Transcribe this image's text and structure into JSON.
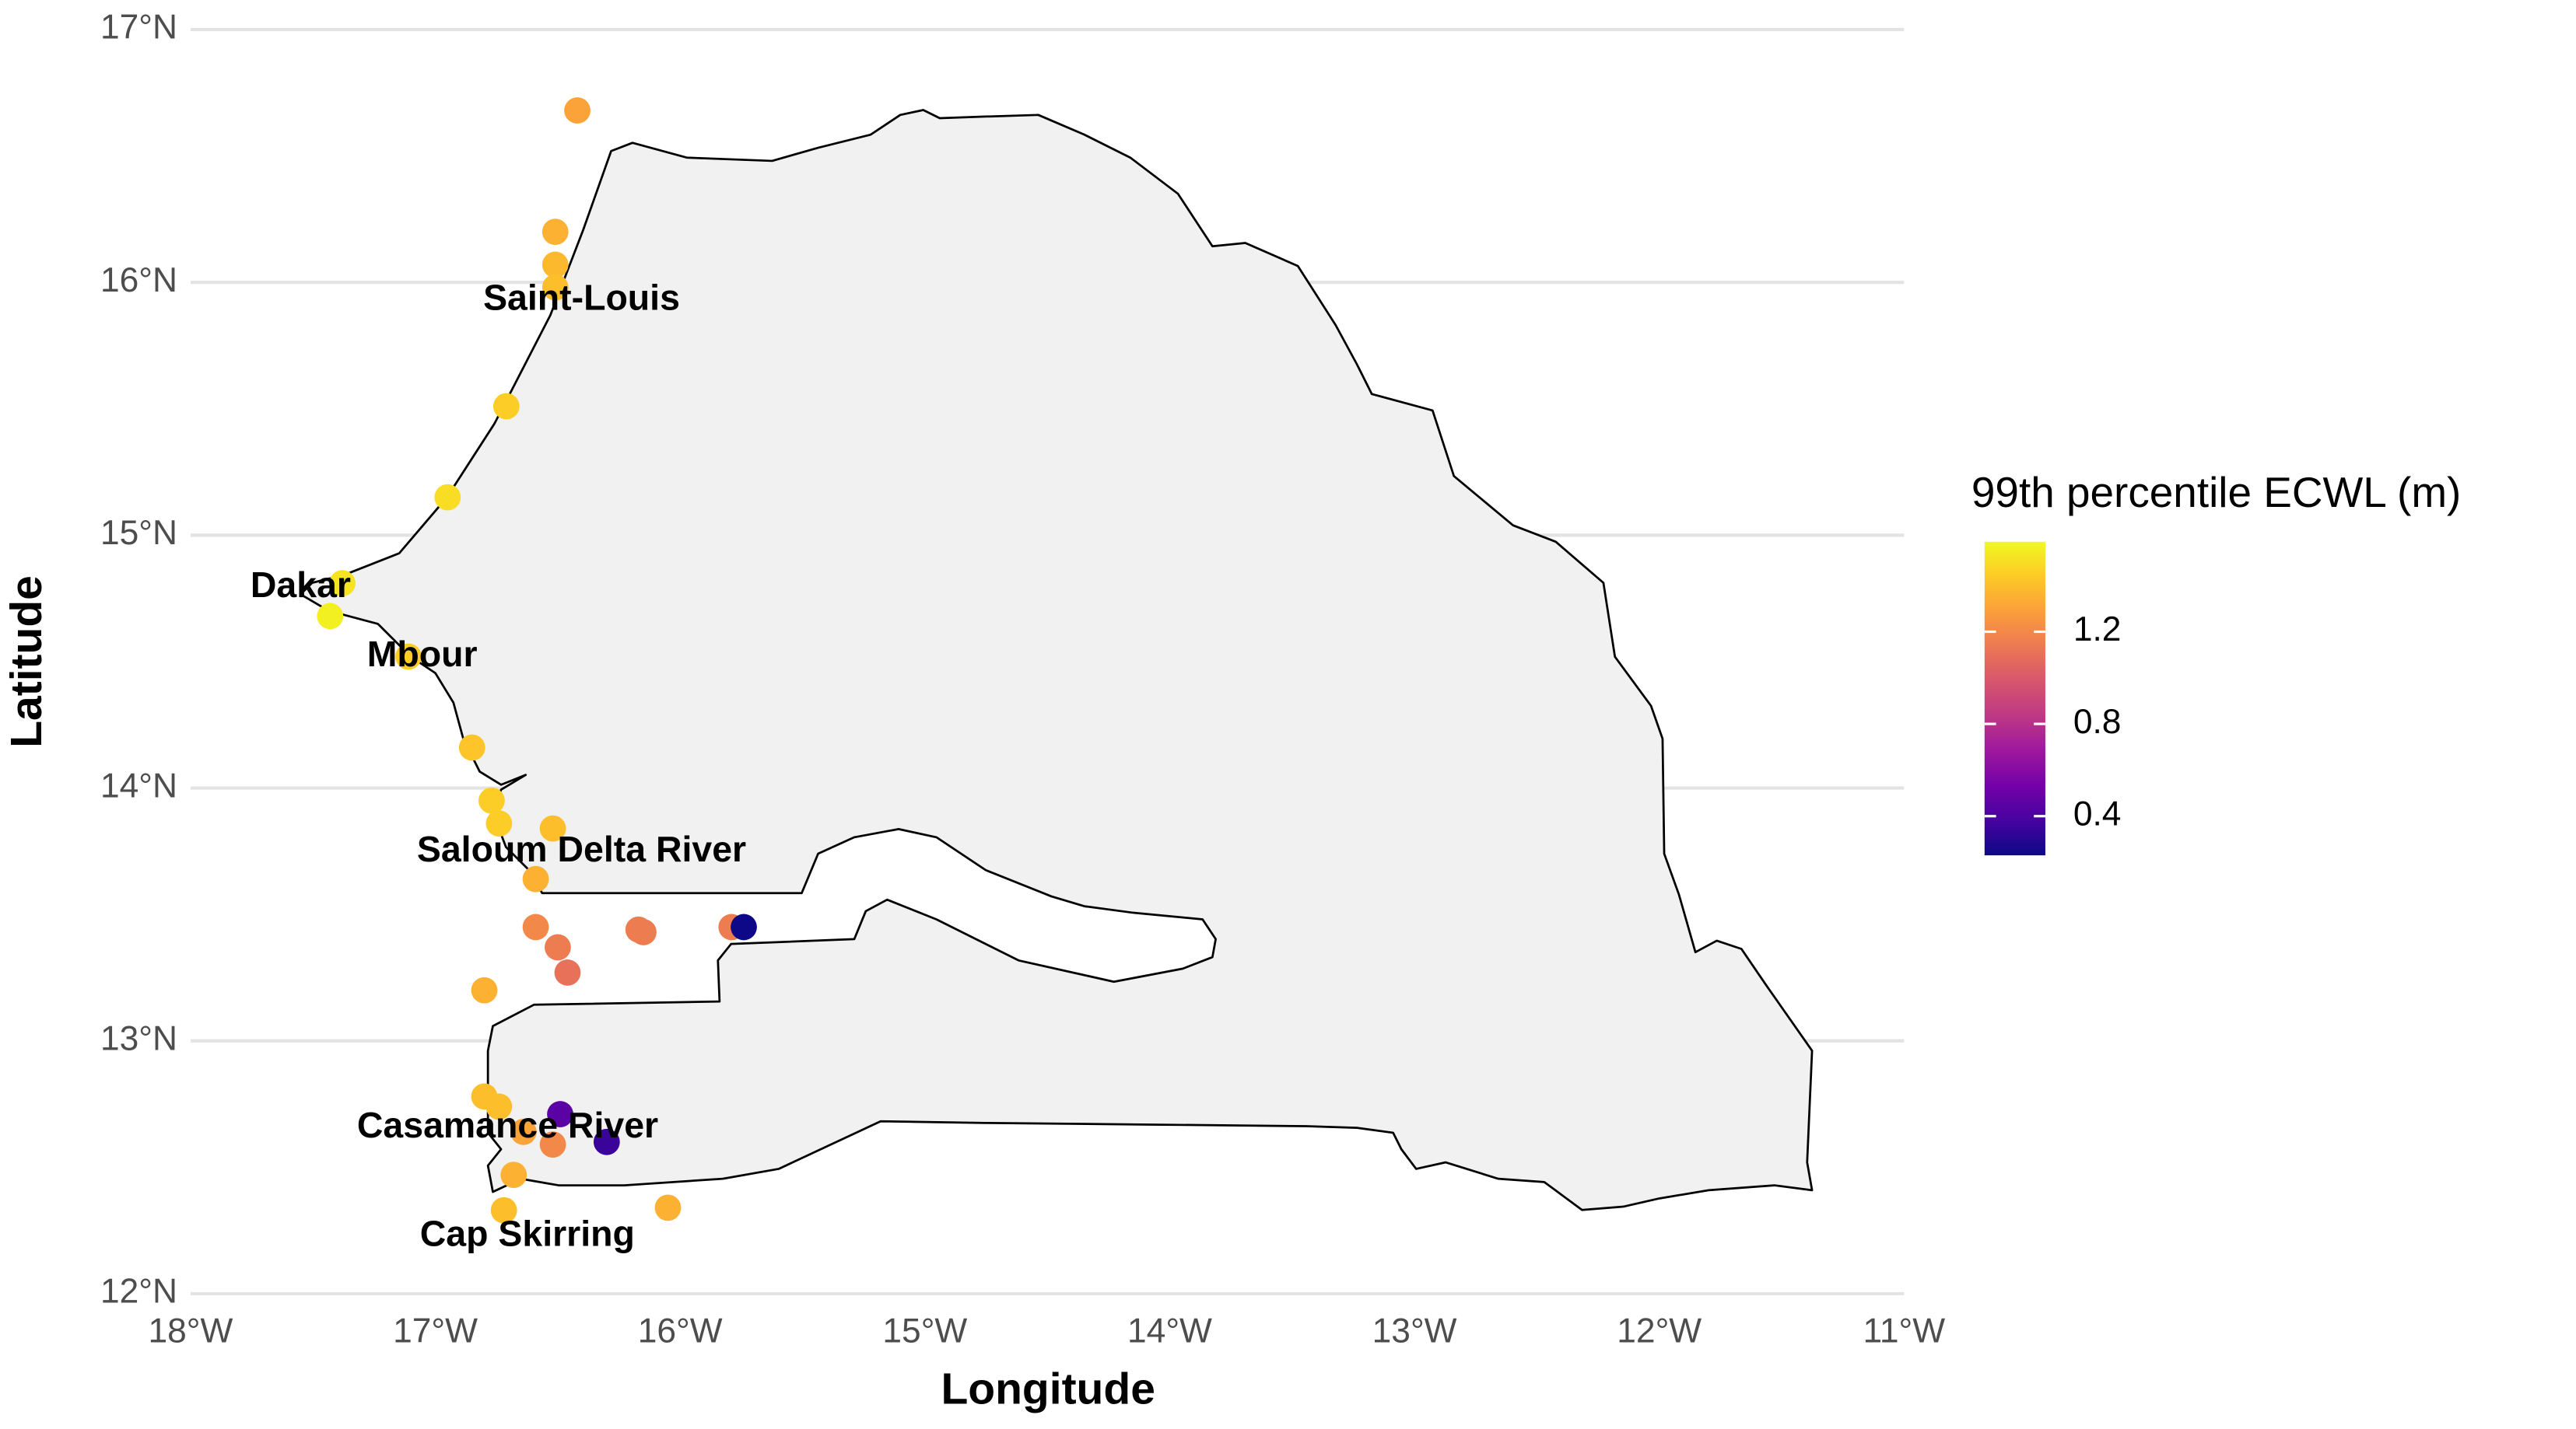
{
  "chart_data": {
    "type": "scatter",
    "x_label": "Longitude",
    "y_label": "Latitude",
    "legend_title": "99th percentile ECWL (m)",
    "colormap": "plasma",
    "clim": [
      0.23,
      1.59
    ],
    "cticks": [
      0.4,
      0.8,
      1.2
    ],
    "xlim": [
      -18,
      -11
    ],
    "ylim": [
      12,
      17
    ],
    "xticks": [
      {
        "value": -18,
        "label": "18°W"
      },
      {
        "value": -17,
        "label": "17°W"
      },
      {
        "value": -16,
        "label": "16°W"
      },
      {
        "value": -15,
        "label": "15°W"
      },
      {
        "value": -14,
        "label": "14°W"
      },
      {
        "value": -13,
        "label": "13°W"
      },
      {
        "value": -12,
        "label": "12°W"
      },
      {
        "value": -11,
        "label": "11°W"
      }
    ],
    "yticks": [
      {
        "value": 12,
        "label": "12°N"
      },
      {
        "value": 13,
        "label": "13°N"
      },
      {
        "value": 14,
        "label": "14°N"
      },
      {
        "value": 15,
        "label": "15°N"
      },
      {
        "value": 16,
        "label": "16°N"
      },
      {
        "value": 17,
        "label": "17°N"
      }
    ],
    "grid": true,
    "x": [
      -16.42,
      -16.51,
      -16.51,
      -16.51,
      -16.71,
      -16.95,
      -17.38,
      -17.43,
      -17.11,
      -16.85,
      -16.77,
      -16.74,
      -16.52,
      -16.59,
      -16.59,
      -16.5,
      -16.46,
      -16.17,
      -16.15,
      -15.79,
      -15.74,
      -16.8,
      -16.8,
      -16.74,
      -16.49,
      -16.64,
      -16.52,
      -16.3,
      -16.68,
      -16.72,
      -16.05
    ],
    "y": [
      16.68,
      16.2,
      16.07,
      15.98,
      15.51,
      15.15,
      14.81,
      14.68,
      14.52,
      14.16,
      13.95,
      13.86,
      13.84,
      13.64,
      13.45,
      13.37,
      13.27,
      13.44,
      13.43,
      13.45,
      13.45,
      13.2,
      12.78,
      12.74,
      12.71,
      12.64,
      12.59,
      12.6,
      12.47,
      12.33,
      12.34
    ],
    "values": [
      1.3,
      1.35,
      1.38,
      1.4,
      1.45,
      1.5,
      1.52,
      1.56,
      1.45,
      1.42,
      1.45,
      1.45,
      1.4,
      1.35,
      1.2,
      1.15,
      1.1,
      1.15,
      1.15,
      1.15,
      0.23,
      1.35,
      1.4,
      1.4,
      0.45,
      1.3,
      1.2,
      0.35,
      1.35,
      1.4,
      1.35
    ],
    "annotations": [
      "Saint-Louis",
      "Dakar",
      "Mbour",
      "Saloum Delta River",
      "Casamance River",
      "Cap Skirring"
    ]
  }
}
